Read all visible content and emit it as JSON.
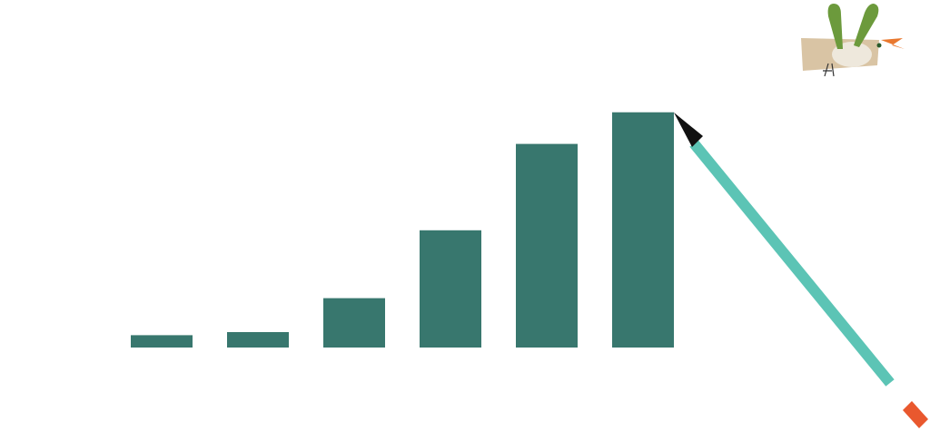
{
  "chart_data": {
    "type": "bar",
    "categories": [
      null,
      null,
      null,
      null,
      null,
      null
    ],
    "values": [
      0.16,
      0.2,
      0.64,
      1.52,
      2.64,
      3.05
    ],
    "color": "#38776e",
    "ylim": [
      0,
      3.5
    ]
  }
}
